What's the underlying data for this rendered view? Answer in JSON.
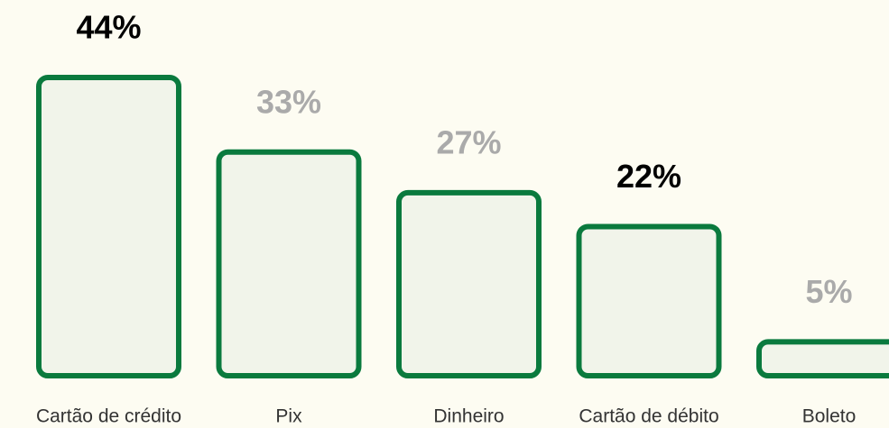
{
  "chart_data": {
    "type": "bar",
    "categories": [
      "Cartão de crédito",
      "Pix",
      "Dinheiro",
      "Cartão de débito",
      "Boleto"
    ],
    "values": [
      44,
      33,
      27,
      22,
      5
    ],
    "value_labels": [
      "44%",
      "33%",
      "27%",
      "22%",
      "5%"
    ],
    "value_label_colors": [
      "#000000",
      "#aaaaaa",
      "#aaaaaa",
      "#000000",
      "#aaaaaa"
    ],
    "color": "#0a7a3e",
    "fill": "#f1f4ea"
  }
}
